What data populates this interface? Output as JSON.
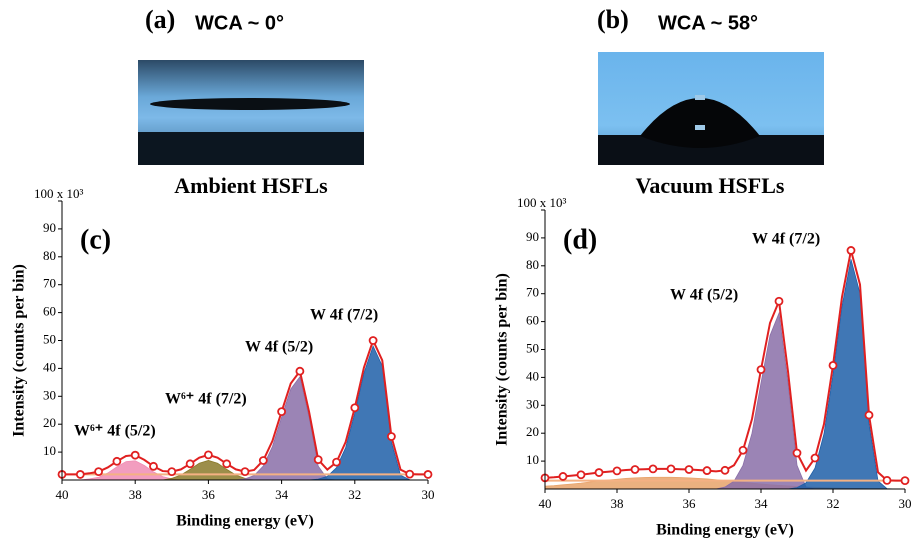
{
  "photos": [
    {
      "label": "(a)",
      "caption": "WCA ~ 0°",
      "title": "Ambient HSFLs"
    },
    {
      "label": "(b)",
      "caption": "WCA ~ 58°",
      "title": "Vacuum HSFLs"
    }
  ],
  "chart_data": [
    {
      "type": "xps",
      "panel": "(c)",
      "xlabel": "Binding energy (eV)",
      "ylabel": "Intensity (counts per bin)",
      "xlim": [
        40,
        30
      ],
      "xticks": [
        40,
        38,
        36,
        34,
        32,
        30
      ],
      "ylim": [
        0,
        100
      ],
      "yticks": [
        10,
        20,
        30,
        40,
        50,
        60,
        70,
        80,
        90,
        {
          "value": 100,
          "label": "100 x 10³"
        }
      ],
      "annotations": [
        "W⁶⁺  4f (5/2)",
        "W⁶⁺ 4f (7/2)",
        "W 4f (5/2)",
        "W 4f (7/2)"
      ],
      "background": 2,
      "background_color": "#f4b183",
      "x": [
        40,
        39.75,
        39.5,
        39.25,
        39,
        38.75,
        38.5,
        38.25,
        38,
        37.75,
        37.5,
        37.25,
        37,
        36.75,
        36.5,
        36.25,
        36,
        35.75,
        35.5,
        35.25,
        35,
        34.75,
        34.5,
        34.25,
        34,
        33.75,
        33.5,
        33.25,
        33,
        32.75,
        32.5,
        32.25,
        32,
        31.75,
        31.5,
        31.25,
        31,
        30.75,
        30.5,
        30.25,
        30
      ],
      "components": [
        {
          "color": "#f08cb4",
          "values": [
            0,
            0,
            0,
            0.4,
            1,
            2.5,
            4.7,
            6.6,
            6.9,
            5.2,
            2.9,
            1.2,
            0.4,
            0,
            0,
            0,
            0,
            0,
            0,
            0,
            0,
            0,
            0,
            0,
            0,
            0,
            0,
            0,
            0,
            0,
            0,
            0,
            0,
            0,
            0,
            0,
            0,
            0,
            0,
            0,
            0
          ]
        },
        {
          "color": "#8b7a2a",
          "values": [
            0,
            0,
            0,
            0,
            0,
            0,
            0,
            0,
            0,
            0,
            0,
            0,
            0.6,
            1.8,
            3.8,
            6,
            7,
            6,
            3.8,
            1.8,
            0.6,
            0,
            0,
            0,
            0,
            0,
            0,
            0,
            0,
            0,
            0,
            0,
            0,
            0,
            0,
            0,
            0,
            0,
            0,
            0,
            0
          ]
        },
        {
          "color": "#8a6fa8",
          "values": [
            0,
            0,
            0,
            0,
            0,
            0,
            0,
            0,
            0,
            0,
            0,
            0,
            0,
            0,
            0,
            0,
            0,
            0,
            0,
            0,
            0.4,
            1.6,
            5,
            12,
            22.5,
            32.6,
            37,
            22.5,
            5,
            0.4,
            0,
            0,
            0,
            0,
            0,
            0,
            0,
            0,
            0,
            0,
            0
          ]
        },
        {
          "color": "#1f5fa8",
          "values": [
            0,
            0,
            0,
            0,
            0,
            0,
            0,
            0,
            0,
            0,
            0,
            0,
            0,
            0,
            0,
            0,
            0,
            0,
            0,
            0,
            0,
            0,
            0,
            0,
            0,
            0,
            0,
            0,
            0.3,
            1.3,
            4.4,
            11.6,
            23.9,
            38.3,
            48,
            40.9,
            13.6,
            1.7,
            0.1,
            0,
            0
          ]
        }
      ],
      "envelope": {
        "color": "#e02020",
        "values": [
          2,
          2,
          2,
          2.4,
          3,
          4.5,
          6.7,
          8.6,
          8.9,
          7.2,
          4.9,
          3.2,
          3,
          3.8,
          5.8,
          8,
          9,
          8,
          5.8,
          3.8,
          3,
          3.6,
          7,
          14,
          24.5,
          34.6,
          39,
          24.5,
          7.3,
          3.7,
          6.4,
          13.6,
          25.9,
          40.3,
          50,
          42.9,
          15.6,
          3.7,
          2.1,
          2,
          2
        ]
      }
    },
    {
      "type": "xps",
      "panel": "(d)",
      "xlabel": "Binding energy (eV)",
      "ylabel": "Intensity (counts per bin)",
      "xlim": [
        40,
        30
      ],
      "xticks": [
        40,
        38,
        36,
        34,
        32,
        30
      ],
      "ylim": [
        0,
        100
      ],
      "yticks": [
        10,
        20,
        30,
        40,
        50,
        60,
        70,
        80,
        90,
        {
          "value": 100,
          "label": "100 x 10³"
        }
      ],
      "annotations": [
        "W 4f (5/2)",
        "W 4f (7/2)"
      ],
      "background": 3,
      "background_color": "#f4b183",
      "x": [
        40,
        39.75,
        39.5,
        39.25,
        39,
        38.75,
        38.5,
        38.25,
        38,
        37.75,
        37.5,
        37.25,
        37,
        36.75,
        36.5,
        36.25,
        36,
        35.75,
        35.5,
        35.25,
        35,
        34.75,
        34.5,
        34.25,
        34,
        33.75,
        33.5,
        33.25,
        33,
        32.75,
        32.5,
        32.25,
        32,
        31.75,
        31.5,
        31.25,
        31,
        30.75,
        30.5,
        30.25,
        30
      ],
      "components": [
        {
          "color": "#e8a36a",
          "values": [
            1,
            1.2,
            1.5,
            1.8,
            2.1,
            2.5,
            2.9,
            3.2,
            3.5,
            3.8,
            4,
            4.1,
            4.2,
            4.2,
            4.2,
            4.1,
            4,
            3.8,
            3.6,
            3.3,
            3,
            2.7,
            2.4,
            2.1,
            1.8,
            1.5,
            1.3,
            1.1,
            0.9,
            0.7,
            0.6,
            0.5,
            0.4,
            0.3,
            0.2,
            0.2,
            0.1,
            0.1,
            0,
            0,
            0
          ]
        },
        {
          "color": "#8a6fa8",
          "values": [
            0,
            0,
            0,
            0,
            0,
            0,
            0,
            0,
            0,
            0,
            0,
            0,
            0,
            0,
            0,
            0,
            0,
            0,
            0,
            0,
            0.7,
            2.8,
            8.5,
            20,
            38,
            55,
            63,
            38,
            8.5,
            0.7,
            0,
            0,
            0,
            0,
            0,
            0,
            0,
            0,
            0,
            0,
            0
          ]
        },
        {
          "color": "#1f5fa8",
          "values": [
            0,
            0,
            0,
            0,
            0,
            0,
            0,
            0,
            0,
            0,
            0,
            0,
            0,
            0,
            0,
            0,
            0,
            0,
            0,
            0,
            0,
            0,
            0,
            0,
            0,
            0,
            0,
            0,
            0.5,
            2.2,
            7.5,
            19.8,
            40.9,
            65.5,
            82.3,
            70.1,
            23.4,
            2.9,
            0.1,
            0,
            0
          ]
        }
      ],
      "envelope": {
        "color": "#e02020",
        "values": [
          4,
          4.2,
          4.5,
          4.8,
          5.1,
          5.5,
          5.9,
          6.2,
          6.5,
          6.8,
          7,
          7.1,
          7.2,
          7.2,
          7.2,
          7.1,
          7,
          6.8,
          6.6,
          6.3,
          6.7,
          8.5,
          13.9,
          25.1,
          42.8,
          59.5,
          67.3,
          42.1,
          12.9,
          6.6,
          11.1,
          23.3,
          44.3,
          68.8,
          85.5,
          73.3,
          26.5,
          6,
          3.1,
          3,
          3
        ]
      }
    }
  ]
}
